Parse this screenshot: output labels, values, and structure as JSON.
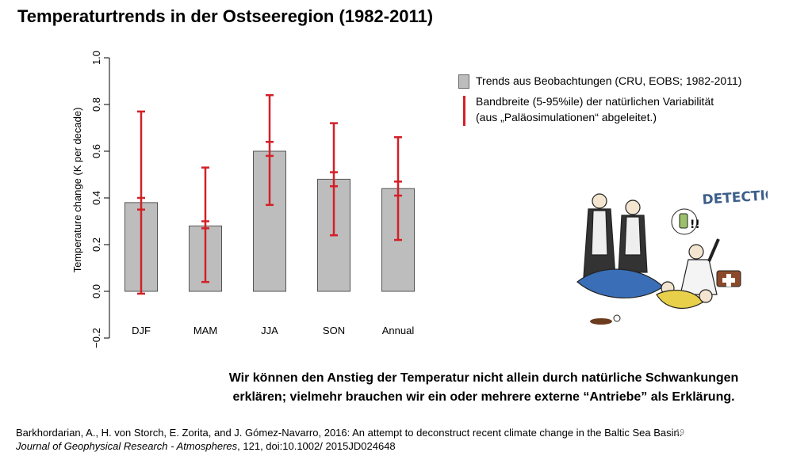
{
  "slide": {
    "title": "Temperaturtrends in der Ostseeregion (1982-2011)",
    "page_number": "19"
  },
  "legend": {
    "observations": "Trends aus Beobachtungen (CRU, EOBS; 1982-2011)",
    "variability_line1": "Bandbreite (5-95%ile) der natürlichen Variabilität",
    "variability_line2": "(aus „Paläosimulationen“ abgeleitet.)"
  },
  "cartoon": {
    "caption": "DETECTION"
  },
  "message": {
    "line1": "Wir können den Anstieg der Temperatur nicht allein durch natürliche Schwankungen",
    "line2": "erklären; vielmehr brauchen wir ein oder mehrere externe “Antriebe” als Erklärung."
  },
  "citation": {
    "line1": "Barkhordarian, A., H. von Storch, E. Zorita, and J. Gómez-Navarro, 2016: An attempt to deconstruct recent climate change in the Baltic Sea Basin.",
    "journal": "Journal of Geophysical Research - Atmospheres",
    "line2_rest": ", 121, doi:10.1002/ 2015JD024648"
  },
  "chart_data": {
    "type": "bar",
    "ylabel": "Temperature change (K per decade)",
    "ylim": [
      -0.2,
      1.0
    ],
    "yticks": [
      "−0.2",
      "0.0",
      "0.2",
      "0.4",
      "0.6",
      "0.8",
      "1.0"
    ],
    "yticks_values": [
      -0.2,
      0.0,
      0.2,
      0.4,
      0.6,
      0.8,
      1.0
    ],
    "categories": [
      "DJF",
      "MAM",
      "JJA",
      "SON",
      "Annual"
    ],
    "values": [
      0.38,
      0.28,
      0.6,
      0.48,
      0.44
    ],
    "range_5_95": [
      [
        -0.01,
        0.77
      ],
      [
        0.04,
        0.53
      ],
      [
        0.37,
        0.84
      ],
      [
        0.24,
        0.72
      ],
      [
        0.22,
        0.66
      ]
    ],
    "inner_range": [
      [
        0.35,
        0.4
      ],
      [
        0.27,
        0.3
      ],
      [
        0.58,
        0.64
      ],
      [
        0.45,
        0.51
      ],
      [
        0.41,
        0.47
      ]
    ],
    "colors": {
      "bar": "#bdbdbd",
      "bar_edge": "#555555",
      "range": "#d32027"
    }
  }
}
